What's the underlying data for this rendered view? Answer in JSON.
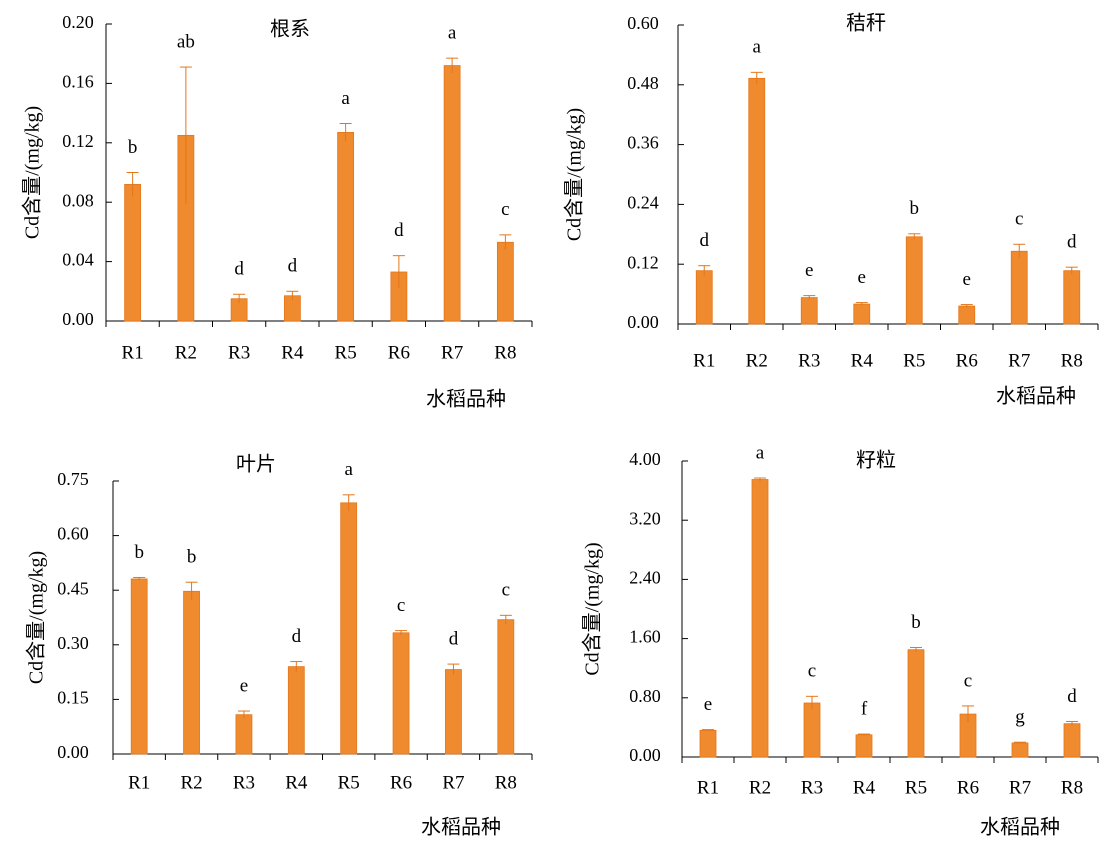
{
  "colors": {
    "bar": "#F08A2E",
    "bar_edge": "#E4761A",
    "axis": "#000000"
  },
  "chart_data": [
    {
      "type": "bar",
      "title": "根系",
      "ylabel": "Cd含量/(mg/kg)",
      "xlabel": "水稻品种",
      "categories": [
        "R1",
        "R2",
        "R3",
        "R4",
        "R5",
        "R6",
        "R7",
        "R8"
      ],
      "values": [
        0.092,
        0.125,
        0.015,
        0.017,
        0.127,
        0.033,
        0.172,
        0.053
      ],
      "errors": [
        0.008,
        0.046,
        0.003,
        0.003,
        0.006,
        0.011,
        0.005,
        0.005
      ],
      "letters": [
        "b",
        "ab",
        "d",
        "d",
        "a",
        "d",
        "a",
        "c"
      ],
      "ylim": [
        0,
        0.2
      ],
      "yticks": [
        "0.00",
        "0.04",
        "0.08",
        "0.12",
        "0.16",
        "0.20"
      ]
    },
    {
      "type": "bar",
      "title": "秸秆",
      "ylabel": "Cd含量/(mg/kg)",
      "xlabel": "水稻品种",
      "categories": [
        "R1",
        "R2",
        "R3",
        "R4",
        "R5",
        "R6",
        "R7",
        "R8"
      ],
      "values": [
        0.107,
        0.493,
        0.053,
        0.04,
        0.175,
        0.036,
        0.146,
        0.107
      ],
      "errors": [
        0.01,
        0.012,
        0.004,
        0.003,
        0.006,
        0.003,
        0.014,
        0.007
      ],
      "letters": [
        "d",
        "a",
        "e",
        "e",
        "b",
        "e",
        "c",
        "d"
      ],
      "ylim": [
        0,
        0.6
      ],
      "yticks": [
        "0.00",
        "0.12",
        "0.24",
        "0.36",
        "0.48",
        "0.60"
      ]
    },
    {
      "type": "bar",
      "title": "叶片",
      "ylabel": "Cd含量/(mg/kg)",
      "xlabel": "水稻品种",
      "categories": [
        "R1",
        "R2",
        "R3",
        "R4",
        "R5",
        "R6",
        "R7",
        "R8"
      ],
      "values": [
        0.481,
        0.447,
        0.108,
        0.24,
        0.69,
        0.333,
        0.232,
        0.369
      ],
      "errors": [
        0.004,
        0.025,
        0.01,
        0.014,
        0.022,
        0.006,
        0.015,
        0.012
      ],
      "letters": [
        "b",
        "b",
        "e",
        "d",
        "a",
        "c",
        "d",
        "c"
      ],
      "ylim": [
        0,
        0.75
      ],
      "yticks": [
        "0.00",
        "0.15",
        "0.30",
        "0.45",
        "0.60",
        "0.75"
      ]
    },
    {
      "type": "bar",
      "title": "籽粒",
      "ylabel": "Cd含量/(mg/kg)",
      "xlabel": "水稻品种",
      "categories": [
        "R1",
        "R2",
        "R3",
        "R4",
        "R5",
        "R6",
        "R7",
        "R8"
      ],
      "values": [
        0.36,
        3.75,
        0.73,
        0.3,
        1.45,
        0.58,
        0.19,
        0.45
      ],
      "errors": [
        0.01,
        0.02,
        0.09,
        0.01,
        0.03,
        0.11,
        0.01,
        0.03
      ],
      "letters": [
        "e",
        "a",
        "c",
        "f",
        "b",
        "c",
        "g",
        "d"
      ],
      "ylim": [
        0,
        4.0
      ],
      "yticks": [
        "0.00",
        "0.80",
        "1.60",
        "2.40",
        "3.20",
        "4.00"
      ]
    }
  ]
}
